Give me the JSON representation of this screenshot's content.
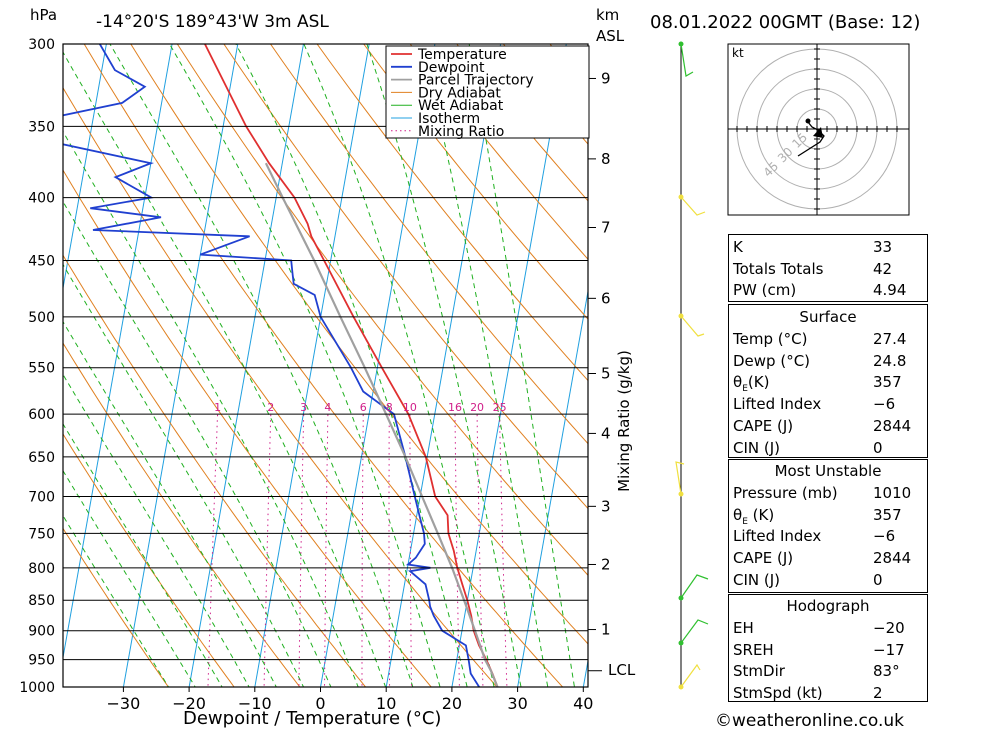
{
  "header": {
    "unit_hpa": "hPa",
    "location": "-14°20'S  189°43'W  3m  ASL",
    "unit_km": "km",
    "unit_asl": "ASL",
    "datetime": "08.01.2022  00GMT  (Base: 12)"
  },
  "axes": {
    "xlabel": "Dewpoint / Temperature (°C)",
    "mixing_label": "Mixing Ratio (g/kg)",
    "lcl_label": "LCL"
  },
  "legend": [
    "Temperature",
    "Dewpoint",
    "Parcel Trajectory",
    "Dry Adiabat",
    "Wet Adiabat",
    "Isotherm",
    "Mixing Ratio"
  ],
  "colors": {
    "temperature": "#e03030",
    "dewpoint": "#2040d0",
    "parcel": "#a0a0a0",
    "dry_adiabat": "#e08020",
    "wet_adiabat": "#20b020",
    "isotherm": "#20a0e0",
    "mixing_ratio": "#d0208a",
    "wind": "#f0e040"
  },
  "chart_data": {
    "type": "line",
    "pressure_levels": [
      300,
      350,
      400,
      450,
      500,
      550,
      600,
      650,
      700,
      750,
      800,
      850,
      900,
      950,
      1000
    ],
    "x_ticks": [
      -30,
      -20,
      -10,
      0,
      10,
      20,
      30,
      40
    ],
    "xlim": [
      -40,
      40
    ],
    "ylim_hpa": [
      1000,
      300
    ],
    "km_ticks": [
      {
        "km": "1",
        "p": 898
      },
      {
        "km": "2",
        "p": 795
      },
      {
        "km": "3",
        "p": 713
      },
      {
        "km": "4",
        "p": 622
      },
      {
        "km": "5",
        "p": 556
      },
      {
        "km": "6",
        "p": 483
      },
      {
        "km": "7",
        "p": 423
      },
      {
        "km": "8",
        "p": 372
      },
      {
        "km": "9",
        "p": 320
      }
    ],
    "lcl_p": 970,
    "mixing_ratio_labels": [
      "1",
      "2",
      "3",
      "4",
      "6",
      "8",
      "10",
      "16",
      "20",
      "25"
    ],
    "mixing_ratio_values": [
      1,
      2,
      3,
      4,
      6,
      8,
      10,
      16,
      20,
      25
    ],
    "series": [
      {
        "name": "Temperature",
        "points": [
          [
            1010,
            27.4
          ],
          [
            975,
            25.8
          ],
          [
            950,
            24.5
          ],
          [
            925,
            23.0
          ],
          [
            900,
            21.8
          ],
          [
            875,
            21.0
          ],
          [
            850,
            20.0
          ],
          [
            825,
            18.8
          ],
          [
            800,
            17.6
          ],
          [
            775,
            16.6
          ],
          [
            750,
            15.3
          ],
          [
            725,
            14.7
          ],
          [
            700,
            12.3
          ],
          [
            650,
            9.8
          ],
          [
            600,
            6.0
          ],
          [
            550,
            0.7
          ],
          [
            500,
            -5.0
          ],
          [
            450,
            -11.0
          ],
          [
            430,
            -13.6
          ],
          [
            420,
            -14.5
          ],
          [
            400,
            -17.2
          ],
          [
            375,
            -22.0
          ],
          [
            350,
            -26.5
          ],
          [
            300,
            -35.0
          ]
        ]
      },
      {
        "name": "Dewpoint",
        "points": [
          [
            1010,
            24.8
          ],
          [
            975,
            22.5
          ],
          [
            950,
            21.8
          ],
          [
            925,
            21.0
          ],
          [
            900,
            17.0
          ],
          [
            875,
            15.3
          ],
          [
            860,
            14.5
          ],
          [
            850,
            14.2
          ],
          [
            825,
            13.2
          ],
          [
            805,
            10.5
          ],
          [
            800,
            13.5
          ],
          [
            795,
            10.0
          ],
          [
            785,
            11.0
          ],
          [
            765,
            12.0
          ],
          [
            750,
            11.6
          ],
          [
            725,
            10.4
          ],
          [
            700,
            9.2
          ],
          [
            650,
            6.7
          ],
          [
            600,
            3.8
          ],
          [
            575,
            -1.5
          ],
          [
            550,
            -4.0
          ],
          [
            500,
            -10.0
          ],
          [
            480,
            -11.5
          ],
          [
            470,
            -15.0
          ],
          [
            460,
            -15.5
          ],
          [
            450,
            -16.0
          ],
          [
            445,
            -30.0
          ],
          [
            430,
            -23.0
          ],
          [
            425,
            -47.0
          ],
          [
            415,
            -37.0
          ],
          [
            408,
            -48.0
          ],
          [
            400,
            -39.0
          ],
          [
            385,
            -45.0
          ],
          [
            375,
            -40.0
          ],
          [
            360,
            -56.0
          ],
          [
            345,
            -57.0
          ],
          [
            335,
            -46.0
          ],
          [
            325,
            -43.0
          ],
          [
            315,
            -48.0
          ],
          [
            300,
            -51.0
          ]
        ]
      },
      {
        "name": "Parcel Trajectory",
        "points": [
          [
            1010,
            27.4
          ],
          [
            970,
            25.5
          ],
          [
            950,
            24.3
          ],
          [
            900,
            22.0
          ],
          [
            850,
            19.5
          ],
          [
            800,
            16.8
          ],
          [
            750,
            13.7
          ],
          [
            700,
            10.3
          ],
          [
            650,
            6.7
          ],
          [
            600,
            2.6
          ],
          [
            550,
            -1.9
          ],
          [
            500,
            -7.0
          ],
          [
            450,
            -12.5
          ],
          [
            400,
            -19.0
          ],
          [
            375,
            -22.5
          ]
        ]
      }
    ]
  },
  "hodograph": {
    "unit": "kt",
    "ring_labels": [
      "15",
      "30",
      "45"
    ]
  },
  "indices": {
    "rows": [
      {
        "k": "K",
        "v": "33"
      },
      {
        "k": "Totals Totals",
        "v": "42"
      },
      {
        "k": "PW (cm)",
        "v": "4.94"
      }
    ]
  },
  "surface": {
    "title": "Surface",
    "rows": [
      {
        "k": "Temp (°C)",
        "v": "27.4"
      },
      {
        "k": "Dewp (°C)",
        "v": "24.8"
      },
      {
        "k": "θE(K)",
        "v": "357"
      },
      {
        "k": "Lifted Index",
        "v": "-6"
      },
      {
        "k": "CAPE (J)",
        "v": "2844"
      },
      {
        "k": "CIN (J)",
        "v": "0"
      }
    ]
  },
  "most_unstable": {
    "title": "Most Unstable",
    "rows": [
      {
        "k": "Pressure (mb)",
        "v": "1010"
      },
      {
        "k": "θE (K)",
        "v": "357"
      },
      {
        "k": "Lifted Index",
        "v": "-6"
      },
      {
        "k": "CAPE (J)",
        "v": "2844"
      },
      {
        "k": "CIN (J)",
        "v": "0"
      }
    ]
  },
  "hodograph_box": {
    "title": "Hodograph",
    "rows": [
      {
        "k": "EH",
        "v": "-20"
      },
      {
        "k": "SREH",
        "v": "-17"
      },
      {
        "k": "StmDir",
        "v": "83°"
      },
      {
        "k": "StmSpd (kt)",
        "v": "2"
      }
    ]
  },
  "footer": {
    "copyright": "©weatheronline.co.uk"
  }
}
